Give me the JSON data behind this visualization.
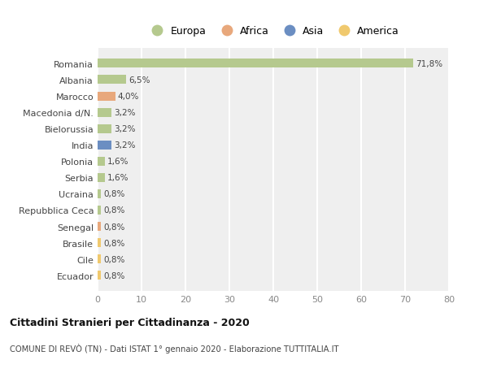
{
  "categories": [
    "Ecuador",
    "Cile",
    "Brasile",
    "Senegal",
    "Repubblica Ceca",
    "Ucraina",
    "Serbia",
    "Polonia",
    "India",
    "Bielorussia",
    "Macedonia d/N.",
    "Marocco",
    "Albania",
    "Romania"
  ],
  "values": [
    0.8,
    0.8,
    0.8,
    0.8,
    0.8,
    0.8,
    1.6,
    1.6,
    3.2,
    3.2,
    3.2,
    4.0,
    6.5,
    71.8
  ],
  "labels": [
    "0,8%",
    "0,8%",
    "0,8%",
    "0,8%",
    "0,8%",
    "0,8%",
    "1,6%",
    "1,6%",
    "3,2%",
    "3,2%",
    "3,2%",
    "4,0%",
    "6,5%",
    "71,8%"
  ],
  "continents": [
    "America",
    "America",
    "America",
    "Africa",
    "Europa",
    "Europa",
    "Europa",
    "Europa",
    "Asia",
    "Europa",
    "Europa",
    "Africa",
    "Europa",
    "Europa"
  ],
  "continent_colors": {
    "Europa": "#b5c98e",
    "Africa": "#e8a87c",
    "Asia": "#6b8ec2",
    "America": "#f0c96e"
  },
  "legend_items": [
    "Europa",
    "Africa",
    "Asia",
    "America"
  ],
  "legend_colors": [
    "#b5c98e",
    "#e8a87c",
    "#6b8ec2",
    "#f0c96e"
  ],
  "title": "Cittadini Stranieri per Cittadinanza - 2020",
  "subtitle": "COMUNE DI REVÒ (TN) - Dati ISTAT 1° gennaio 2020 - Elaborazione TUTTITALIA.IT",
  "xlim": [
    0,
    80
  ],
  "xticks": [
    0,
    10,
    20,
    30,
    40,
    50,
    60,
    70,
    80
  ],
  "bg_color": "#ffffff",
  "plot_bg_color": "#efefef",
  "grid_color": "#ffffff",
  "bar_height": 0.55
}
